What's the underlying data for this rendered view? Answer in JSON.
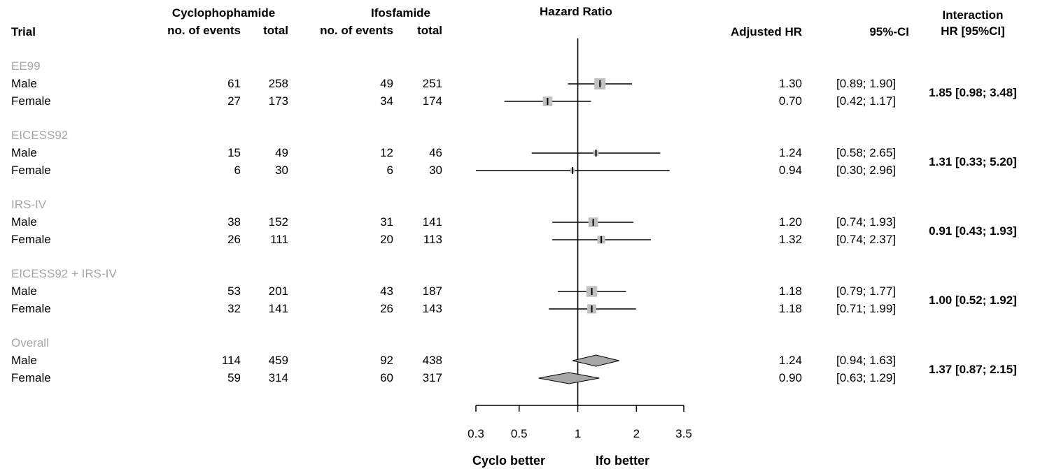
{
  "headers": {
    "trial": "Trial",
    "cyclo_group": "Cyclophophamide",
    "cyclo_events": "no. of events",
    "cyclo_total": "total",
    "ifo_group": "Ifosfamide",
    "ifo_events": "no. of events",
    "ifo_total": "total",
    "hazard_ratio": "Hazard Ratio",
    "adjusted_hr": "Adjusted HR",
    "ci": "95%-CI",
    "interaction_line1": "Interaction",
    "interaction_line2": "HR [95%CI]"
  },
  "footer": {
    "left": "Cyclo better",
    "right": "Ifo better"
  },
  "colors": {
    "group_label": "#a6a6a6",
    "square": "#c0c0c0",
    "diamond": "#a6a6a6",
    "line": "#000000"
  },
  "chart_data": {
    "type": "forest",
    "scale": "log",
    "reference_line": 1,
    "xlim": [
      0.3,
      3.5
    ],
    "ticks": [
      0.3,
      0.5,
      1,
      2,
      3.5
    ],
    "tick_labels": [
      "0.3",
      "0.5",
      "1",
      "2",
      "3.5"
    ],
    "groups": [
      {
        "name": "EE99",
        "interaction": "1.85 [0.98; 3.48]",
        "rows": [
          {
            "label": "Male",
            "cyc_events": "61",
            "cyc_total": "258",
            "ifo_events": "49",
            "ifo_total": "251",
            "hr": 1.3,
            "lo": 0.89,
            "hi": 1.9,
            "hr_text": "1.30",
            "ci_text": "[0.89; 1.90]",
            "weight": 1.0
          },
          {
            "label": "Female",
            "cyc_events": "27",
            "cyc_total": "173",
            "ifo_events": "34",
            "ifo_total": "174",
            "hr": 0.7,
            "lo": 0.42,
            "hi": 1.17,
            "hr_text": "0.70",
            "ci_text": "[0.42; 1.17]",
            "weight": 0.8
          }
        ]
      },
      {
        "name": "EICESS92",
        "interaction": "1.31 [0.33; 5.20]",
        "rows": [
          {
            "label": "Male",
            "cyc_events": "15",
            "cyc_total": "49",
            "ifo_events": "12",
            "ifo_total": "46",
            "hr": 1.24,
            "lo": 0.58,
            "hi": 2.65,
            "hr_text": "1.24",
            "ci_text": "[0.58; 2.65]",
            "weight": 0.3
          },
          {
            "label": "Female",
            "cyc_events": "6",
            "cyc_total": "30",
            "ifo_events": "6",
            "ifo_total": "30",
            "hr": 0.94,
            "lo": 0.3,
            "hi": 2.96,
            "hr_text": "0.94",
            "ci_text": "[0.30; 2.96]",
            "weight": 0.2
          }
        ]
      },
      {
        "name": "IRS-IV",
        "interaction": "0.91 [0.43; 1.93]",
        "rows": [
          {
            "label": "Male",
            "cyc_events": "38",
            "cyc_total": "152",
            "ifo_events": "31",
            "ifo_total": "141",
            "hr": 1.2,
            "lo": 0.74,
            "hi": 1.93,
            "hr_text": "1.20",
            "ci_text": "[0.74; 1.93]",
            "weight": 0.8
          },
          {
            "label": "Female",
            "cyc_events": "26",
            "cyc_total": "111",
            "ifo_events": "20",
            "ifo_total": "113",
            "hr": 1.32,
            "lo": 0.74,
            "hi": 2.37,
            "hr_text": "1.32",
            "ci_text": "[0.74; 2.37]",
            "weight": 0.6
          }
        ]
      },
      {
        "name": "EICESS92 + IRS-IV",
        "interaction": "1.00 [0.52; 1.92]",
        "rows": [
          {
            "label": "Male",
            "cyc_events": "53",
            "cyc_total": "201",
            "ifo_events": "43",
            "ifo_total": "187",
            "hr": 1.18,
            "lo": 0.79,
            "hi": 1.77,
            "hr_text": "1.18",
            "ci_text": "[0.79; 1.77]",
            "weight": 0.95
          },
          {
            "label": "Female",
            "cyc_events": "32",
            "cyc_total": "141",
            "ifo_events": "26",
            "ifo_total": "143",
            "hr": 1.18,
            "lo": 0.71,
            "hi": 1.99,
            "hr_text": "1.18",
            "ci_text": "[0.71; 1.99]",
            "weight": 0.75
          }
        ]
      },
      {
        "name": "Overall",
        "interaction": "1.37 [0.87; 2.15]",
        "rows": [
          {
            "label": "Male",
            "cyc_events": "114",
            "cyc_total": "459",
            "ifo_events": "92",
            "ifo_total": "438",
            "hr": 1.24,
            "lo": 0.94,
            "hi": 1.63,
            "hr_text": "1.24",
            "ci_text": "[0.94; 1.63]",
            "diamond": true
          },
          {
            "label": "Female",
            "cyc_events": "59",
            "cyc_total": "314",
            "ifo_events": "60",
            "ifo_total": "317",
            "hr": 0.9,
            "lo": 0.63,
            "hi": 1.29,
            "hr_text": "0.90",
            "ci_text": "[0.63; 1.29]",
            "diamond": true
          }
        ]
      }
    ]
  }
}
